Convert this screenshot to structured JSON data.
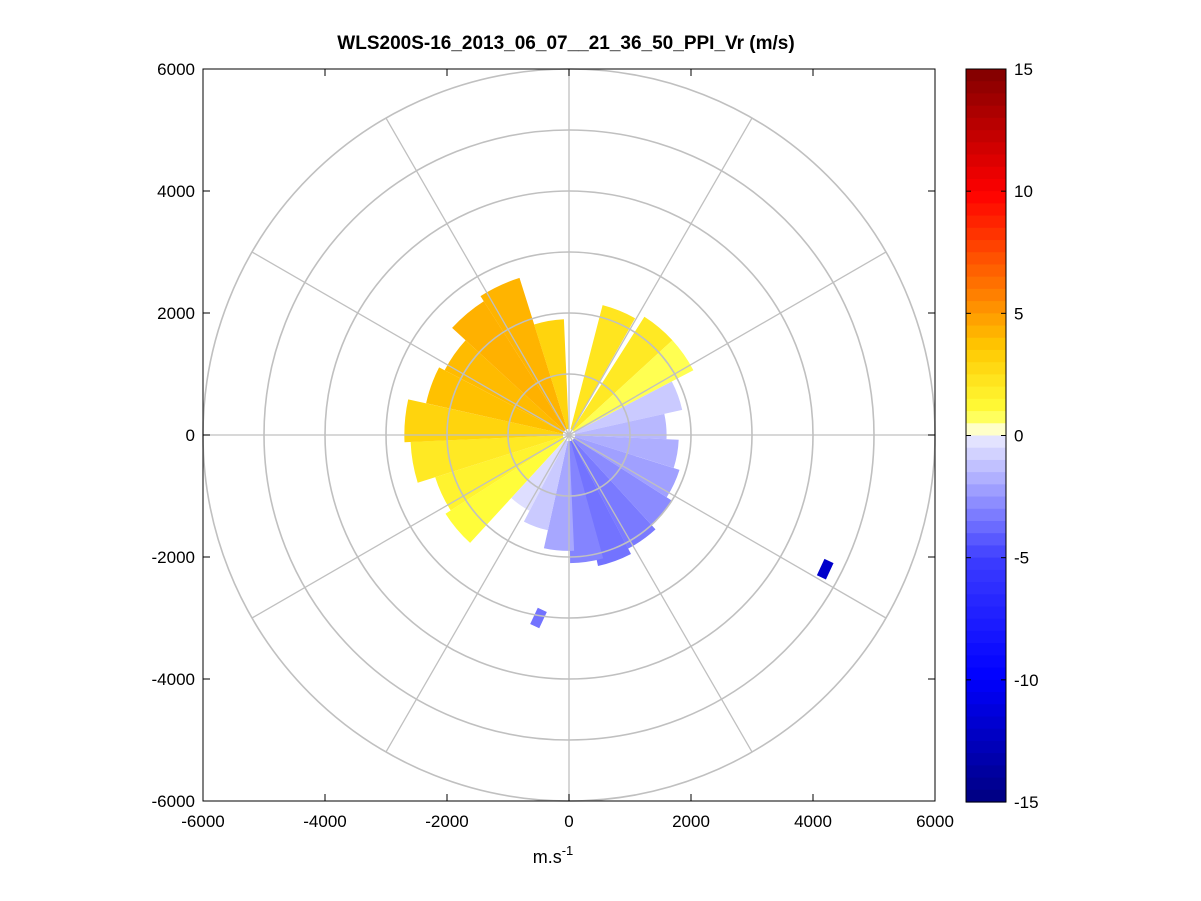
{
  "chart_data": {
    "type": "heatmap",
    "title": "WLS200S-16_2013_06_07__21_36_50_PPI_Vr (m/s)",
    "xlabel": "m.s",
    "xlabel_superscript": "-1",
    "ylabel": "",
    "xlim": [
      -6000,
      6000
    ],
    "ylim": [
      -6000,
      6000
    ],
    "x_ticks": [
      "-6000",
      "-4000",
      "-2000",
      "0",
      "2000",
      "4000",
      "6000"
    ],
    "y_ticks": [
      "6000",
      "4000",
      "2000",
      "0",
      "-2000",
      "-4000",
      "-6000"
    ],
    "polar_grid": {
      "range_rings_m": [
        1000,
        2000,
        3000,
        4000,
        5000,
        6000
      ],
      "spoke_angles_deg": [
        0,
        30,
        60,
        90,
        120,
        150,
        180,
        210,
        240,
        270,
        300,
        330
      ]
    },
    "colorbar": {
      "range": [
        -15,
        15
      ],
      "ticks": [
        "15",
        "10",
        "5",
        "0",
        "-5",
        "-10",
        "-15"
      ],
      "colormap": "blue-white-yellow-red",
      "colors": {
        "min": "#000080",
        "neg": "#3b3bff",
        "zero": "#ffffff",
        "pos_low": "#ffff30",
        "pos_mid": "#ff7700",
        "max": "#800000"
      }
    },
    "sectors": [
      {
        "az_deg": 22,
        "r_range_m": [
          100,
          2200
        ],
        "vr": 2.2
      },
      {
        "az_deg": 40,
        "r_range_m": [
          100,
          2300
        ],
        "vr": 2.0
      },
      {
        "az_deg": 55,
        "r_range_m": [
          100,
          2300
        ],
        "vr": 0.8
      },
      {
        "az_deg": 70,
        "r_range_m": [
          100,
          1900
        ],
        "vr": -1.0
      },
      {
        "az_deg": 85,
        "r_range_m": [
          100,
          1600
        ],
        "vr": -1.5
      },
      {
        "az_deg": 100,
        "r_range_m": [
          100,
          1800
        ],
        "vr": -1.8
      },
      {
        "az_deg": 115,
        "r_range_m": [
          100,
          1900
        ],
        "vr": -2.2
      },
      {
        "az_deg": 130,
        "r_range_m": [
          100,
          2000
        ],
        "vr": -2.8
      },
      {
        "az_deg": 145,
        "r_range_m": [
          100,
          2100
        ],
        "vr": -3.3
      },
      {
        "az_deg": 160,
        "r_range_m": [
          100,
          2200
        ],
        "vr": -3.5
      },
      {
        "az_deg": 172,
        "r_range_m": [
          100,
          2100
        ],
        "vr": -3.0
      },
      {
        "az_deg": 185,
        "r_range_m": [
          100,
          1900
        ],
        "vr": -2.0
      },
      {
        "az_deg": 200,
        "r_range_m": [
          100,
          1600
        ],
        "vr": -1.0
      },
      {
        "az_deg": 215,
        "r_range_m": [
          100,
          1400
        ],
        "vr": -0.4
      },
      {
        "az_deg": 230,
        "r_range_m": [
          100,
          2400
        ],
        "vr": 1.0
      },
      {
        "az_deg": 245,
        "r_range_m": [
          100,
          2300
        ],
        "vr": 1.5
      },
      {
        "az_deg": 260,
        "r_range_m": [
          100,
          2600
        ],
        "vr": 2.0
      },
      {
        "az_deg": 275,
        "r_range_m": [
          100,
          2700
        ],
        "vr": 3.0
      },
      {
        "az_deg": 290,
        "r_range_m": [
          100,
          2400
        ],
        "vr": 3.8
      },
      {
        "az_deg": 305,
        "r_range_m": [
          100,
          2300
        ],
        "vr": 4.0
      },
      {
        "az_deg": 320,
        "r_range_m": [
          100,
          2600
        ],
        "vr": 4.3
      },
      {
        "az_deg": 335,
        "r_range_m": [
          100,
          2700
        ],
        "vr": 4.2
      },
      {
        "az_deg": 350,
        "r_range_m": [
          100,
          1900
        ],
        "vr": 3.0
      }
    ],
    "isolated_points": [
      {
        "x": 4200,
        "y": -2200,
        "vr": -12
      },
      {
        "x": -500,
        "y": -3000,
        "vr": -3.5
      }
    ]
  }
}
